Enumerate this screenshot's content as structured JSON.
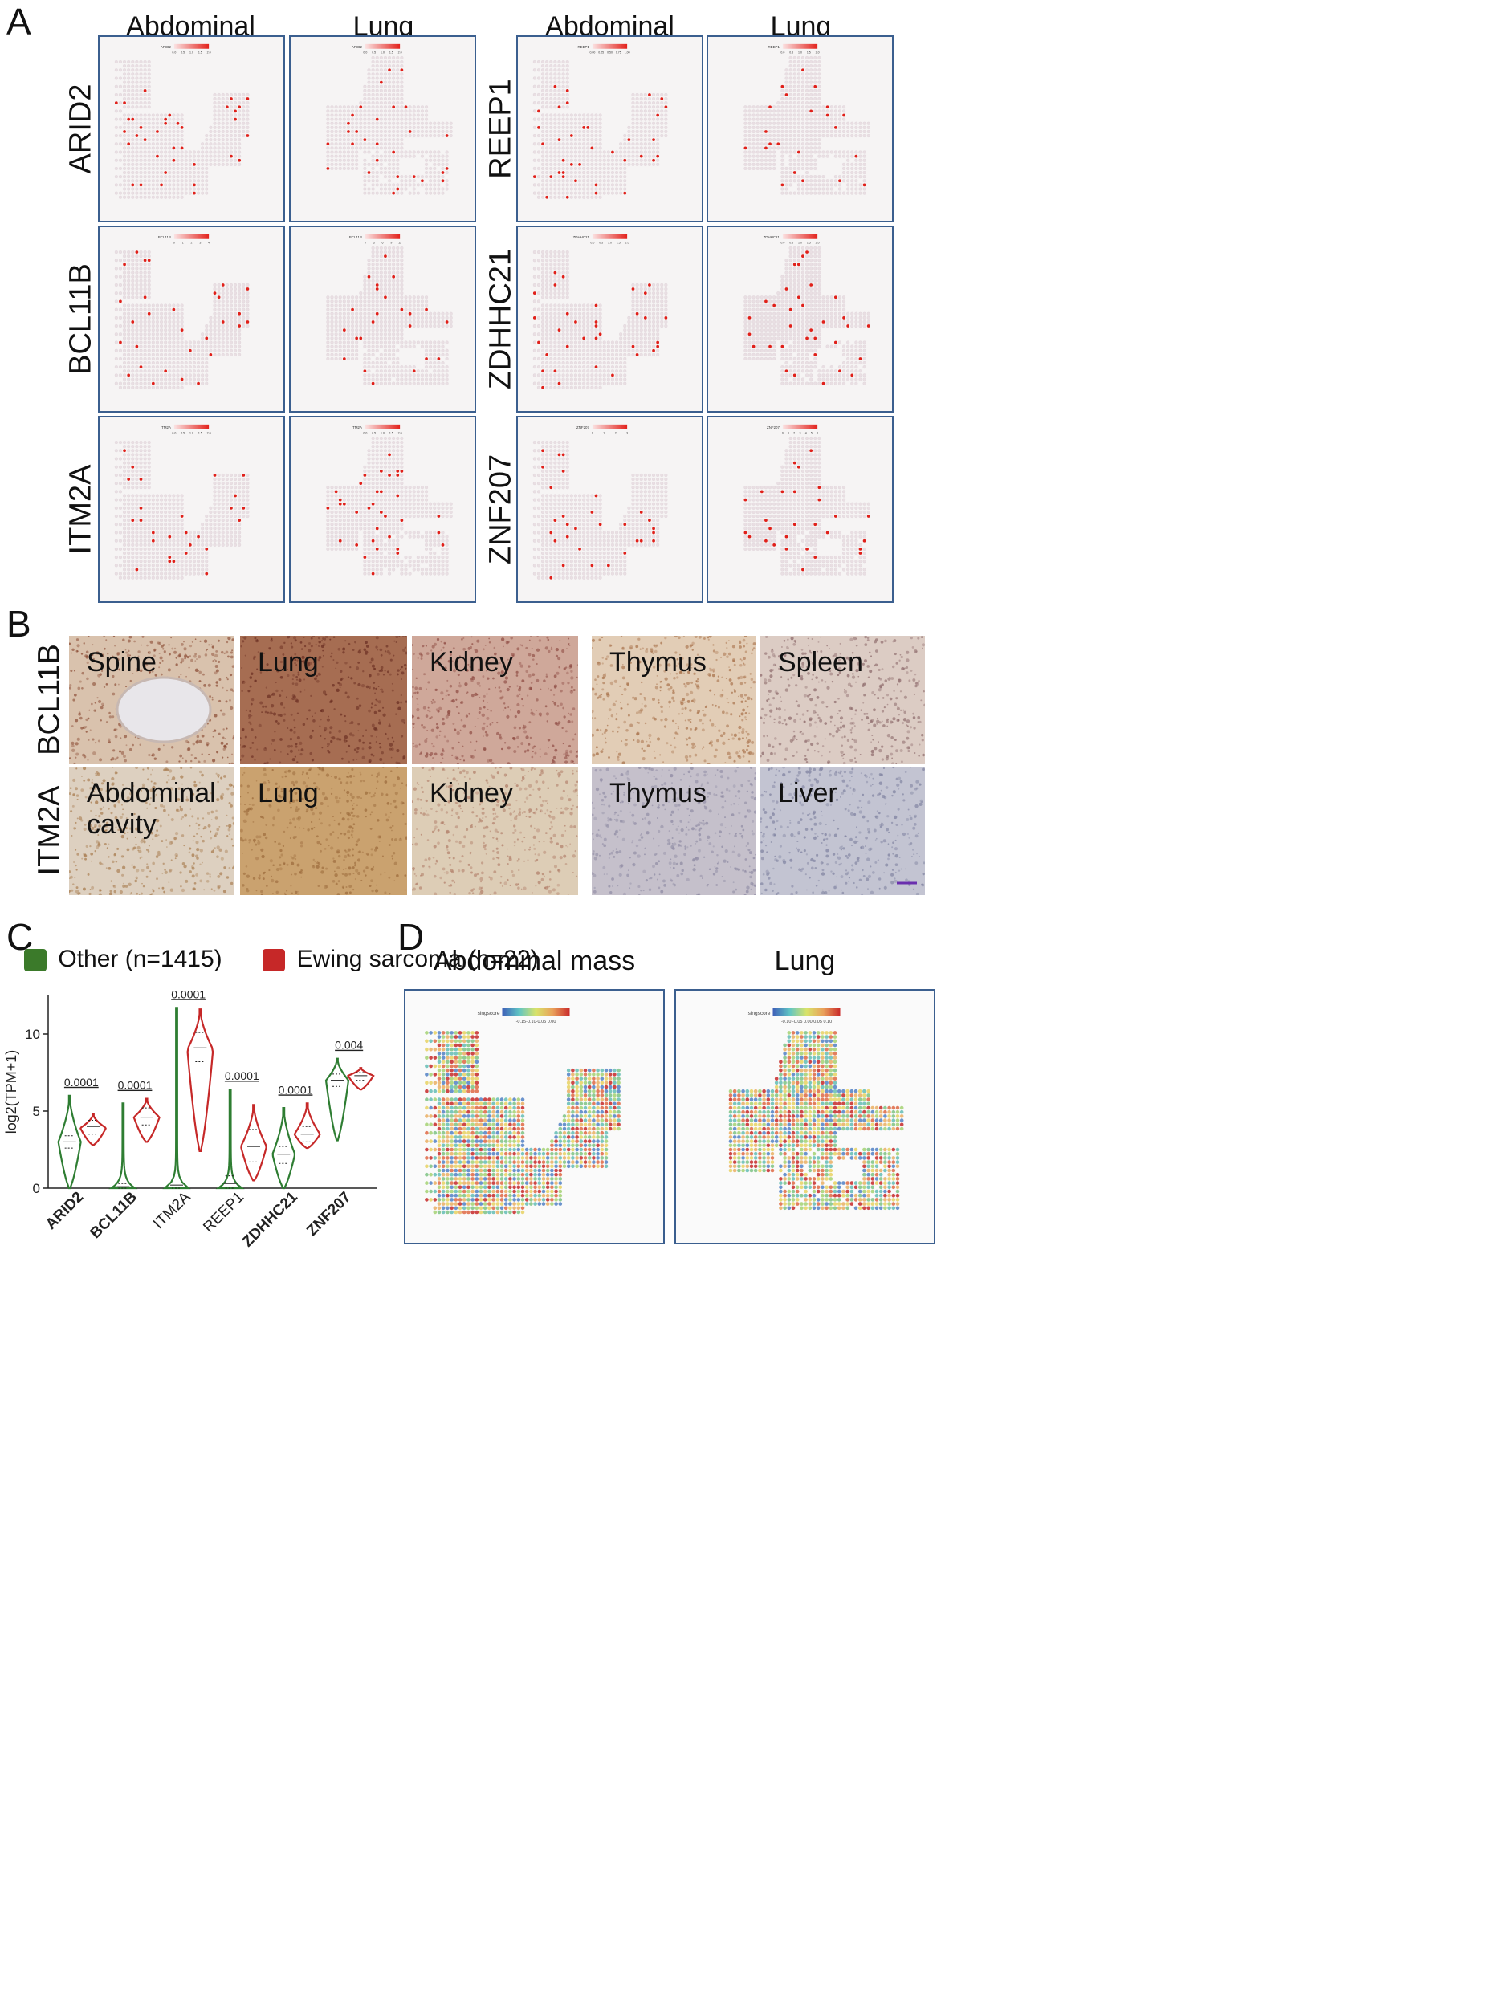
{
  "panels": {
    "A": {
      "label": "A",
      "col_titles_left": [
        "Abdominal mass",
        "Lung"
      ],
      "col_titles_right": [
        "Abdominal mass",
        "Lung"
      ],
      "rows_left": [
        {
          "gene": "ARID2",
          "scale": [
            "0.0",
            "0.5",
            "1.0",
            "1.5",
            "2.0"
          ],
          "scale_lung": [
            "0.0",
            "0.5",
            "1.0",
            "1.5",
            "2.0"
          ]
        },
        {
          "gene": "BCL11B",
          "scale": [
            "0",
            "1",
            "2",
            "3",
            "4"
          ],
          "scale_lung": [
            "0",
            "3",
            "6",
            "9",
            "12"
          ]
        },
        {
          "gene": "ITM2A",
          "scale": [
            "0.0",
            "0.5",
            "1.0",
            "1.5",
            "2.0"
          ],
          "scale_lung": [
            "0.0",
            "0.5",
            "1.0",
            "1.5",
            "2.0"
          ]
        }
      ],
      "rows_right": [
        {
          "gene": "REEP1",
          "scale": [
            "0.00",
            "0.25",
            "0.50",
            "0.75",
            "1.00"
          ],
          "scale_lung": [
            "0.0",
            "0.5",
            "1.0",
            "1.5",
            "2.0"
          ]
        },
        {
          "gene": "ZDHHC21",
          "scale": [
            "0.0",
            "0.5",
            "1.0",
            "1.5",
            "2.0"
          ],
          "scale_lung": [
            "0.0",
            "0.5",
            "1.0",
            "1.5",
            "2.0"
          ]
        },
        {
          "gene": "ZNF207",
          "scale": [
            "0",
            "1",
            "2",
            "3"
          ],
          "scale_lung": [
            "0",
            "1",
            "2",
            "3",
            "4",
            "5",
            "6"
          ]
        }
      ]
    },
    "B": {
      "label": "B",
      "rows": [
        {
          "stain": "BCL11B",
          "tissues": [
            "Spine",
            "Lung",
            "Kidney",
            "Thymus",
            "Spleen"
          ]
        },
        {
          "stain": "ITM2A",
          "tissues": [
            "Abdominal cavity",
            "Lung",
            "Kidney",
            "Thymus",
            "Liver"
          ]
        }
      ]
    },
    "C": {
      "label": "C",
      "legend": [
        {
          "name": "Other (n=1415)",
          "color": "#2e7d32"
        },
        {
          "name": "Ewing sarcoma (n=22)",
          "color": "#c62828"
        }
      ]
    },
    "D": {
      "label": "D",
      "titles": [
        "Abdominal mass",
        "Lung"
      ],
      "scale_title": "singscore",
      "scale_left": "-0.15-0.10-0.05 0.00",
      "scale_right": "-0.10 -0.05 0.00 0.05 0.10"
    }
  },
  "chart_data": {
    "type": "violin",
    "ylabel": "log2(TPM+1)",
    "ylim": [
      0,
      12.5
    ],
    "yticks": [
      0,
      5,
      10
    ],
    "categories": [
      "ARID2",
      "BCL11B",
      "ITM2A",
      "REEP1",
      "ZDHHC21",
      "ZNF207"
    ],
    "bold_categories": [
      "ARID2",
      "BCL11B",
      "ZDHHC21",
      "ZNF207"
    ],
    "p_values": [
      "0.0001",
      "0.0001",
      "0.0001",
      "0.0001",
      "0.0001",
      "0.004"
    ],
    "series": [
      {
        "name": "Other (n=1415)",
        "color": "#2e7d32",
        "min": [
          0,
          0,
          0,
          0,
          0,
          3.1
        ],
        "max": [
          6.0,
          5.5,
          11.7,
          6.4,
          5.2,
          8.4
        ],
        "median": [
          3.0,
          0.1,
          0.2,
          0.3,
          2.2,
          7.0
        ],
        "q1": [
          2.6,
          0.0,
          0.0,
          0.0,
          1.6,
          6.6
        ],
        "q3": [
          3.4,
          0.3,
          0.6,
          0.8,
          2.7,
          7.4
        ],
        "mode": [
          3.0,
          0.1,
          0.2,
          0.2,
          2.2,
          7.0
        ]
      },
      {
        "name": "Ewing sarcoma (n=22)",
        "color": "#c62828",
        "min": [
          2.8,
          3.0,
          2.4,
          0.5,
          2.6,
          6.4
        ],
        "max": [
          4.8,
          5.8,
          11.6,
          5.4,
          5.5,
          7.8
        ],
        "median": [
          4.0,
          4.6,
          9.1,
          2.7,
          3.5,
          7.3
        ],
        "q1": [
          3.5,
          4.1,
          8.2,
          1.7,
          3.0,
          7.0
        ],
        "q3": [
          4.4,
          5.2,
          10.1,
          3.8,
          4.0,
          7.5
        ],
        "mode": [
          3.9,
          4.6,
          9.0,
          2.7,
          3.5,
          7.3
        ]
      }
    ]
  }
}
